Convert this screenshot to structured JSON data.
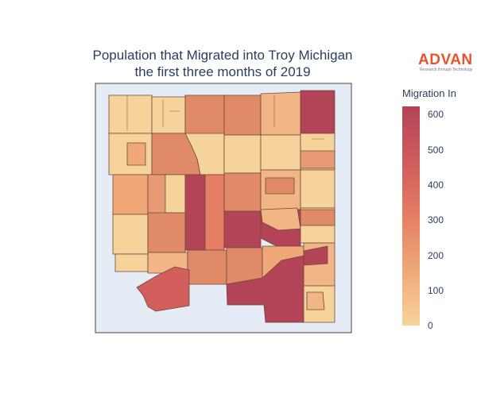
{
  "title_line1": "Population that Migrated into Troy Michigan",
  "title_line2": "the first three months of 2019",
  "brand": {
    "name": "ADVAN",
    "tagline": "Research through Technology",
    "color": "#e8542a"
  },
  "colorbar": {
    "title": "Migration In",
    "ticks": [
      "600",
      "500",
      "400",
      "300",
      "200",
      "100",
      "0"
    ],
    "colors": [
      "#f7d39c",
      "#f0a878",
      "#e57e65",
      "#d25f5c",
      "#b34457"
    ]
  },
  "map": {
    "background": "#e5ecf6",
    "border": "#444444"
  }
}
